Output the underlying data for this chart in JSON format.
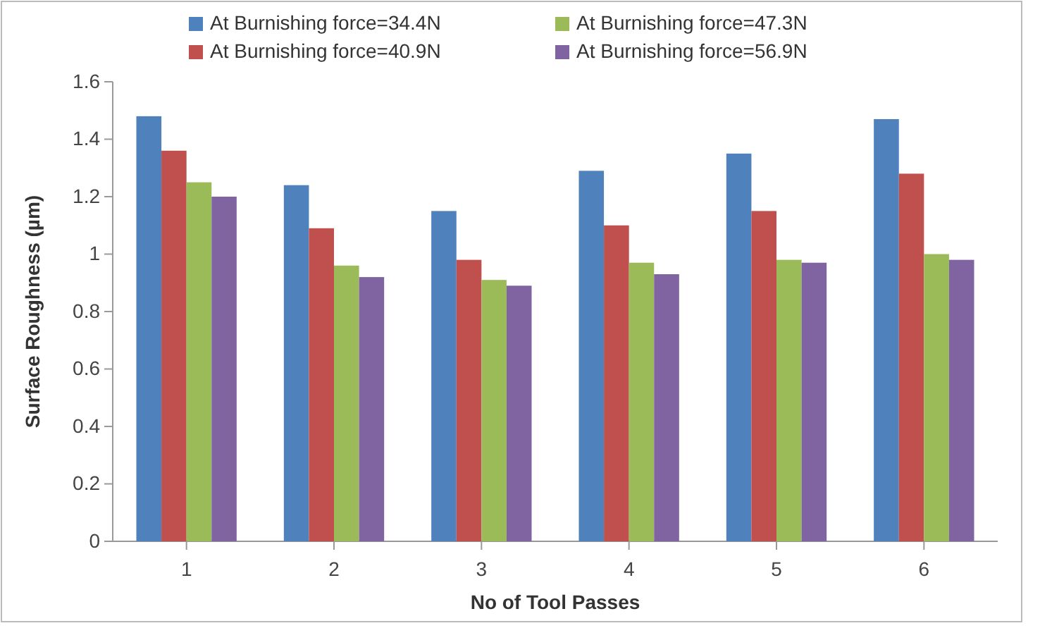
{
  "chart_data": {
    "type": "bar",
    "xlabel": "No of Tool Passes",
    "ylabel": "Surface Roughness (µm)",
    "categories": [
      "1",
      "2",
      "3",
      "4",
      "5",
      "6"
    ],
    "series": [
      {
        "name": "At Burnishing force=34.4N",
        "color": "#4f81bd",
        "values": [
          1.48,
          1.24,
          1.15,
          1.29,
          1.35,
          1.47
        ]
      },
      {
        "name": "At Burnishing force=40.9N",
        "color": "#c0504d",
        "values": [
          1.36,
          1.09,
          0.98,
          1.1,
          1.15,
          1.28
        ]
      },
      {
        "name": "At Burnishing force=47.3N",
        "color": "#9bbb59",
        "values": [
          1.25,
          0.96,
          0.91,
          0.97,
          0.98,
          1.0
        ]
      },
      {
        "name": "At Burnishing force=56.9N",
        "color": "#8064a2",
        "values": [
          1.2,
          0.92,
          0.89,
          0.93,
          0.97,
          0.98
        ]
      }
    ],
    "ylim": [
      0,
      1.6
    ],
    "yticks": [
      0,
      0.2,
      0.4,
      0.6,
      0.8,
      1,
      1.2,
      1.4,
      1.6
    ],
    "grid": false,
    "legend": "top"
  }
}
